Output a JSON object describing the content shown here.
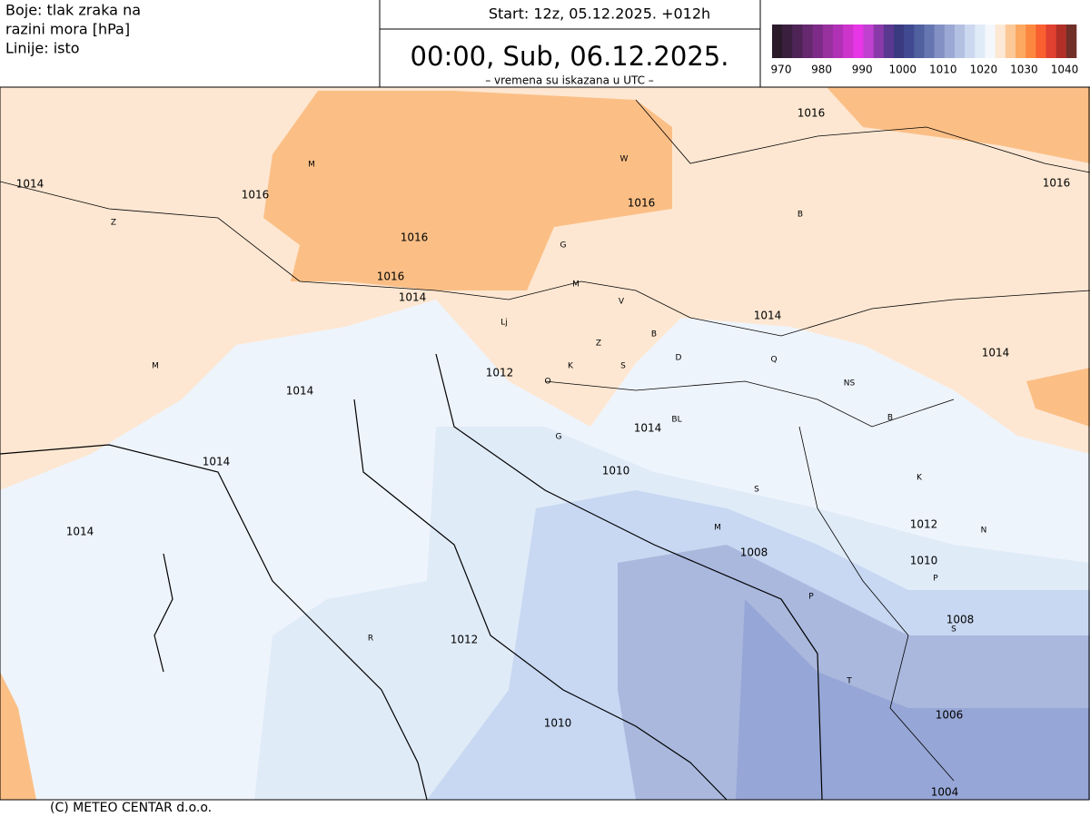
{
  "header": {
    "info_lines": [
      "Boje: tlak zraka na",
      "razini mora [hPa]",
      "Linije: isto"
    ],
    "run": "Start: 12z, 05.12.2025.   +012h",
    "valid": "00:00, Sub, 06.12.2025.",
    "note": "– vremena su iskazana u UTC –"
  },
  "legend": {
    "colors": [
      "#2a1a2a",
      "#3a1f3f",
      "#4e2457",
      "#66286f",
      "#7e2a88",
      "#98309e",
      "#b030b6",
      "#cc34cc",
      "#e636e6",
      "#c040d0",
      "#8a3aa8",
      "#5a3890",
      "#3a3a80",
      "#404a90",
      "#5060a0",
      "#6676b0",
      "#8290c4",
      "#9ca8d4",
      "#b4c0e2",
      "#ccd8f0",
      "#e0ebf8",
      "#f4f8fc",
      "#fce8d4",
      "#fcc898",
      "#fca860",
      "#fc8840",
      "#f86030",
      "#e04030",
      "#b03028",
      "#703028"
    ],
    "ticks": [
      970,
      980,
      990,
      1000,
      1010,
      1020,
      1030,
      1040
    ]
  },
  "contour_labels": [
    1016,
    1016,
    1014,
    1016,
    1016,
    1016,
    1016,
    1014,
    1014,
    1014,
    1012,
    1014,
    1014,
    1014,
    1010,
    1014,
    1012,
    1008,
    1010,
    1008,
    1012,
    1006,
    1010,
    1004
  ],
  "place_labels": [
    "M",
    "W",
    "Z",
    "B",
    "G",
    "M",
    "V",
    "Lj",
    "Z",
    "B",
    "D",
    "K",
    "S",
    "Q",
    "M",
    "O",
    "NS",
    "BL",
    "B",
    "G",
    "K",
    "S",
    "M",
    "N",
    "P",
    "P",
    "S",
    "R",
    "T"
  ],
  "footer": "(C) METEO CENTAR d.o.o."
}
